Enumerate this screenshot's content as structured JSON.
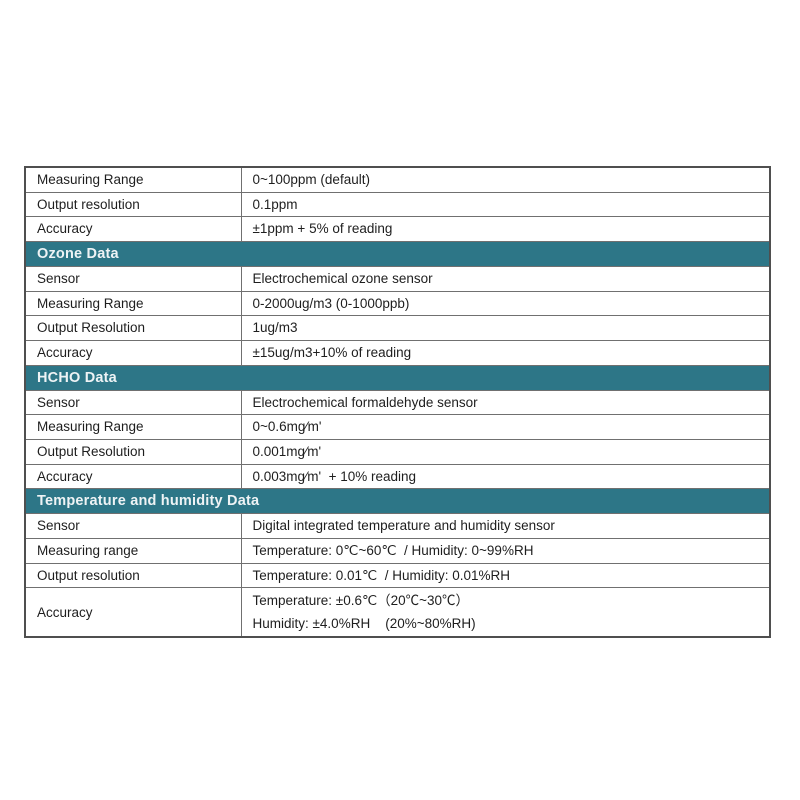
{
  "page": {
    "background_color": "#ffffff"
  },
  "table": {
    "accent_color": "#2d7687",
    "header_text_color": "#eef3f5",
    "body_text_color": "#1e1e1e",
    "inner_border_color": "#707070",
    "outer_border_color": "#4f4f4f",
    "sections": [
      {
        "header": "",
        "rows": [
          {
            "label": "Measuring Range",
            "value_lines": [
              "0~100ppm (default)"
            ]
          },
          {
            "label": "Output resolution",
            "value_lines": [
              "0.1ppm"
            ]
          },
          {
            "label": "Accuracy",
            "value_lines": [
              "±1ppm + 5% of reading"
            ]
          }
        ]
      },
      {
        "header": "Ozone Data",
        "rows": [
          {
            "label": "Sensor",
            "value_lines": [
              "Electrochemical ozone sensor"
            ]
          },
          {
            "label": "Measuring Range",
            "value_lines": [
              "0-2000ug/m3 (0-1000ppb)"
            ]
          },
          {
            "label": "Output Resolution",
            "value_lines": [
              "1ug/m3"
            ]
          },
          {
            "label": "Accuracy",
            "value_lines": [
              "±15ug/m3+10% of reading"
            ]
          }
        ]
      },
      {
        "header": "HCHO Data",
        "rows": [
          {
            "label": "Sensor",
            "value_lines": [
              "Electrochemical formaldehyde sensor"
            ]
          },
          {
            "label": "Measuring Range",
            "value_lines": [
              "0~0.6mg⁄m'"
            ]
          },
          {
            "label": "Output Resolution",
            "value_lines": [
              "0.001mg⁄m'"
            ]
          },
          {
            "label": "Accuracy",
            "value_lines": [
              "0.003mg⁄m'  + 10% reading"
            ]
          }
        ]
      },
      {
        "header": "Temperature and humidity Data",
        "rows": [
          {
            "label": "Sensor",
            "value_lines": [
              "Digital integrated temperature and humidity sensor"
            ]
          },
          {
            "label": "Measuring range",
            "value_lines": [
              "Temperature: 0℃~60℃  / Humidity: 0~99%RH"
            ]
          },
          {
            "label": "Output resolution",
            "value_lines": [
              "Temperature: 0.01℃  / Humidity: 0.01%RH"
            ]
          },
          {
            "label": "Accuracy",
            "value_lines": [
              "Temperature: ±0.6℃（20℃~30℃）",
              "Humidity: ±4.0%RH    (20%~80%RH)"
            ]
          }
        ]
      }
    ]
  }
}
